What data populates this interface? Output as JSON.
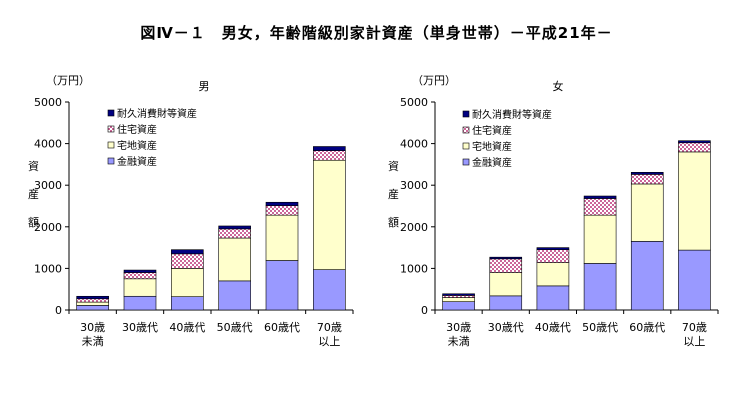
{
  "title": "図Ⅳ－１　男女，年齢階級別家計資産（単身世帯）－平成21年－",
  "colors": {
    "financial": "#9999ff",
    "residential_land": "#ffffcc",
    "dwelling": "#cc99cc",
    "durable": "#000080",
    "axis": "#000000"
  },
  "chart_data": [
    {
      "type": "bar",
      "stacked": true,
      "title": "男",
      "unit_label": "（万円）",
      "ylabel": "資産額",
      "ylim": [
        0,
        5000
      ],
      "yticks": [
        "0",
        "1000",
        "2000",
        "3000",
        "4000",
        "5000"
      ],
      "categories": [
        [
          "30歳",
          "未満"
        ],
        [
          "30歳代"
        ],
        [
          "40歳代"
        ],
        [
          "50歳代"
        ],
        [
          "60歳代"
        ],
        [
          "70歳",
          "以上"
        ]
      ],
      "legend": [
        "耐久消費財等資産",
        "住宅資産",
        "宅地資産",
        "金融資産"
      ],
      "series": [
        {
          "name": "金融資産",
          "key": "financial",
          "values": [
            110,
            330,
            320,
            700,
            1190,
            970
          ]
        },
        {
          "name": "宅地資産",
          "key": "residential_land",
          "values": [
            80,
            420,
            680,
            1030,
            1090,
            2630
          ]
        },
        {
          "name": "住宅資産",
          "key": "dwelling",
          "values": [
            80,
            150,
            350,
            220,
            230,
            230
          ]
        },
        {
          "name": "耐久消費財等資産",
          "key": "durable",
          "values": [
            60,
            60,
            100,
            70,
            80,
            100
          ]
        }
      ]
    },
    {
      "type": "bar",
      "stacked": true,
      "title": "女",
      "unit_label": "（万円）",
      "ylabel": "資産額",
      "ylim": [
        0,
        5000
      ],
      "yticks": [
        "0",
        "1000",
        "2000",
        "3000",
        "4000",
        "5000"
      ],
      "categories": [
        [
          "30歳",
          "未満"
        ],
        [
          "30歳代"
        ],
        [
          "40歳代"
        ],
        [
          "50歳代"
        ],
        [
          "60歳代"
        ],
        [
          "70歳",
          "以上"
        ]
      ],
      "legend": [
        "耐久消費財等資産",
        "住宅資産",
        "宅地資産",
        "金融資産"
      ],
      "series": [
        {
          "name": "金融資産",
          "key": "financial",
          "values": [
            200,
            340,
            580,
            1120,
            1650,
            1440
          ]
        },
        {
          "name": "宅地資産",
          "key": "residential_land",
          "values": [
            100,
            560,
            560,
            1160,
            1380,
            2360
          ]
        },
        {
          "name": "住宅資産",
          "key": "dwelling",
          "values": [
            50,
            330,
            310,
            400,
            230,
            220
          ]
        },
        {
          "name": "耐久消費財等資産",
          "key": "durable",
          "values": [
            40,
            40,
            50,
            60,
            50,
            50
          ]
        }
      ]
    }
  ]
}
